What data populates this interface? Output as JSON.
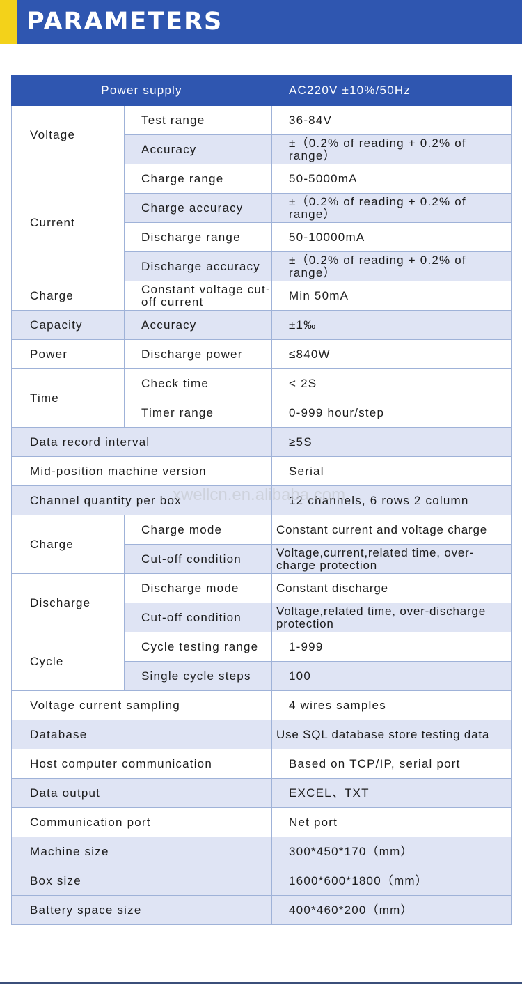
{
  "header": {
    "title": "PARAMETERS",
    "background": "#2f56b0",
    "accent": "#f3d21a"
  },
  "table": {
    "head": {
      "label": "Power supply",
      "value": "AC220V ±10%/50Hz"
    },
    "voltage": {
      "group": "Voltage",
      "rows": [
        {
          "label": "Test range",
          "value": "36-84V"
        },
        {
          "label": "Accuracy",
          "value": "±（0.2% of reading + 0.2% of range）"
        }
      ]
    },
    "current": {
      "group": "Current",
      "rows": [
        {
          "label": "Charge range",
          "value": "50-5000mA"
        },
        {
          "label": "Charge accuracy",
          "value": "±（0.2% of reading + 0.2% of range）"
        },
        {
          "label": "Discharge range",
          "value": "50-10000mA"
        },
        {
          "label": "Discharge accuracy",
          "value": "±（0.2% of reading + 0.2% of range）"
        }
      ]
    },
    "charge_cutoff": {
      "group": "Charge",
      "label": "Constant voltage cut-off current",
      "value": "Min 50mA"
    },
    "capacity": {
      "group": "Capacity",
      "label": "Accuracy",
      "value": "±1‰"
    },
    "power": {
      "group": "Power",
      "label": "Discharge power",
      "value": "≤840W"
    },
    "time": {
      "group": "Time",
      "rows": [
        {
          "label": "Check time",
          "value": "< 2S"
        },
        {
          "label": "Timer range",
          "value": "0-999 hour/step"
        }
      ]
    },
    "data_record": {
      "label": "Data record interval",
      "value": "≥5S"
    },
    "mid_position": {
      "label": "Mid-position machine version",
      "value": "Serial"
    },
    "channel_qty": {
      "label": "Channel quantity per box",
      "value": "12 channels, 6 rows 2 column"
    },
    "charge": {
      "group": "Charge",
      "rows": [
        {
          "label": "Charge mode",
          "value": "Constant current and voltage charge"
        },
        {
          "label": "Cut-off condition",
          "value": "Voltage,current,related time, over-charge protection"
        }
      ]
    },
    "discharge": {
      "group": "Discharge",
      "rows": [
        {
          "label": "Discharge mode",
          "value": "Constant discharge"
        },
        {
          "label": "Cut-off condition",
          "value": "Voltage,related time, over-discharge protection"
        }
      ]
    },
    "cycle": {
      "group": "Cycle",
      "rows": [
        {
          "label": "Cycle testing range",
          "value": "1-999"
        },
        {
          "label": "Single cycle steps",
          "value": "100"
        }
      ]
    },
    "sampling": {
      "label": "Voltage current sampling",
      "value": "4 wires samples"
    },
    "database": {
      "label": "Database",
      "value": "Use SQL database store testing data"
    },
    "host_comm": {
      "label": "Host computer communication",
      "value": "Based on TCP/IP, serial port"
    },
    "data_output": {
      "label": "Data output",
      "value": "EXCEL、TXT"
    },
    "comm_port": {
      "label": "Communication port",
      "value": "Net port"
    },
    "machine_size": {
      "label": "Machine size",
      "value": "300*450*170（mm）"
    },
    "box_size": {
      "label": "Box size",
      "value": "1600*600*1800（mm）"
    },
    "battery_space": {
      "label": "Battery space size",
      "value": "400*460*200（mm）"
    }
  },
  "watermark": "xwellcn.en.alibaba.com"
}
